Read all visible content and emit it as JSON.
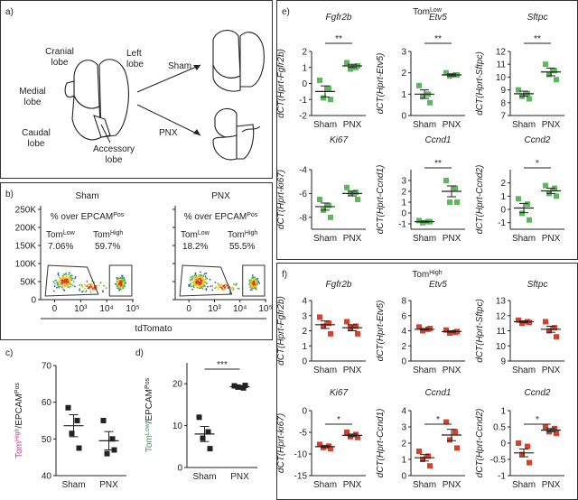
{
  "panel_a": {
    "label": "a)",
    "lobes": [
      [
        "Cranial",
        "lobe"
      ],
      [
        "Left",
        "lobe"
      ],
      [
        "Medial",
        "lobe"
      ],
      [
        "Caudal",
        "lobe"
      ],
      [
        "Accessory",
        "lobe"
      ]
    ],
    "arrows": [
      "Sham",
      "PNX"
    ]
  },
  "panel_b": {
    "label": "b)",
    "xlabel": "tdTomato",
    "ylim": [
      0,
      250000
    ],
    "yticks": [
      {
        "value": 250000,
        "label": "250K"
      },
      {
        "value": 200000,
        "label": "200K"
      },
      {
        "value": 150000,
        "label": "150K"
      },
      {
        "value": 100000,
        "label": "100K"
      },
      {
        "value": 50000,
        "label": "50K"
      },
      0
    ],
    "xticks": [
      0,
      {
        "value": 1000,
        "label": "10³"
      },
      {
        "value": 10000,
        "label": "10⁴"
      },
      {
        "value": 100000,
        "label": "10⁵"
      }
    ],
    "colors": {
      "low": "#2e9a5a",
      "high": "#d6338f"
    },
    "plots": [
      {
        "title": "Sham",
        "heading": [
          {
            "text": "% over EPCAM"
          },
          {
            "text": "Pos",
            "sup": true
          }
        ],
        "low": [
          {
            "text": "Tom"
          },
          {
            "text": "Low",
            "sup": true
          }
        ],
        "low_value": "7.06%",
        "high": [
          {
            "text": "Tom"
          },
          {
            "text": "High",
            "sup": true
          }
        ],
        "high_value": "59.7%"
      },
      {
        "title": "PNX",
        "heading": [
          {
            "text": "% over EPCAM"
          },
          {
            "text": "Pos",
            "sup": true
          }
        ],
        "low": [
          {
            "text": "Tom"
          },
          {
            "text": "Low",
            "sup": true
          }
        ],
        "low_value": "18.2%",
        "high": [
          {
            "text": "Tom"
          },
          {
            "text": "High",
            "sup": true
          }
        ],
        "high_value": "55.5%"
      }
    ]
  },
  "panel_e": {
    "label": "e)",
    "title": [
      {
        "text": "Tom"
      },
      {
        "text": "Low",
        "sup": true
      }
    ],
    "color": "#3aa64a"
  },
  "panel_f": {
    "label": "f)",
    "title": [
      {
        "text": "Tom"
      },
      {
        "text": "High",
        "sup": true
      }
    ],
    "color": "#d6338f"
  },
  "chart_data": [
    {
      "type": "dot",
      "label": "c)",
      "ylabel": [
        {
          "text": "Tom",
          "color": "#d6338f"
        },
        {
          "text": "High",
          "sup": true,
          "color": "#d6338f"
        },
        {
          "text": "/EPCAM"
        },
        {
          "text": "Pos",
          "sup": true
        }
      ],
      "categories": [
        "Sham",
        "PNX"
      ],
      "marker": "square",
      "color": "#222222",
      "groups": [
        {
          "values": [
            58.5,
            55,
            51.5,
            47.5
          ],
          "mean": 53.6,
          "sem": 3.0
        },
        {
          "values": [
            55,
            50,
            46,
            47
          ],
          "mean": 49.5,
          "sem": 2.5
        }
      ],
      "ylim": [
        40,
        70
      ],
      "yticks": [
        40,
        50,
        60,
        70
      ]
    },
    {
      "type": "dot",
      "label": "d)",
      "ylabel": [
        {
          "text": "Tom",
          "color": "#2e9a5a"
        },
        {
          "text": "Low",
          "sup": true,
          "color": "#2e9a5a"
        },
        {
          "text": "/EPCAM"
        },
        {
          "text": "Pos",
          "sup": true
        }
      ],
      "categories": [
        "Sham",
        "PNX"
      ],
      "marker": "square",
      "color": "#222222",
      "significance": "***",
      "groups": [
        {
          "values": [
            12,
            8.5,
            7,
            4.5
          ],
          "mean": 8,
          "sem": 1.8
        },
        {
          "values": [
            19.5,
            19,
            19.2,
            19.6
          ],
          "mean": 19.3,
          "sem": 0.3
        }
      ],
      "ylim": [
        0,
        25
      ],
      "yticks": [
        0,
        10,
        20
      ]
    },
    {
      "type": "dot",
      "title": "Fgfr2b",
      "ylabel": "dCT(Hprt-Fgfr2b)",
      "categories": [
        "Sham",
        "PNX"
      ],
      "marker": "square",
      "color": "#5cb85c",
      "significance": "**",
      "groups": [
        {
          "values": [
            0.2,
            -0.3,
            -0.9,
            -1.0
          ],
          "mean": -0.5,
          "sem": 0.35
        },
        {
          "values": [
            1.3,
            1.0,
            0.9,
            1.1
          ],
          "mean": 1.1,
          "sem": 0.1
        }
      ],
      "ylim": [
        -2,
        2
      ],
      "yticks": [
        -2,
        -1,
        0,
        1,
        2
      ]
    },
    {
      "type": "dot",
      "title": "Etv5",
      "ylabel": "dCT(Hprt-Etv5)",
      "categories": [
        "Sham",
        "PNX"
      ],
      "marker": "square",
      "color": "#5cb85c",
      "significance": "**",
      "groups": [
        {
          "values": [
            1.4,
            1.0,
            0.9,
            0.6
          ],
          "mean": 1.0,
          "sem": 0.2
        },
        {
          "values": [
            2.0,
            1.9,
            1.85,
            1.9
          ],
          "mean": 1.9,
          "sem": 0.05
        }
      ],
      "ylim": [
        0,
        3
      ],
      "yticks": [
        0,
        1,
        2,
        3
      ]
    },
    {
      "type": "dot",
      "title": "Sftpc",
      "ylabel": "dCT(Hprt-Sftpc)",
      "categories": [
        "Sham",
        "PNX"
      ],
      "marker": "square",
      "color": "#5cb85c",
      "significance": "**",
      "groups": [
        {
          "values": [
            9.0,
            8.7,
            8.5,
            8.3
          ],
          "mean": 8.7,
          "sem": 0.2
        },
        {
          "values": [
            11.0,
            10.5,
            10.2,
            9.8
          ],
          "mean": 10.4,
          "sem": 0.3
        }
      ],
      "ylim": [
        7,
        12
      ],
      "yticks": [
        7,
        8,
        9,
        10,
        11,
        12
      ]
    },
    {
      "type": "dot",
      "title": "Ki67",
      "ylabel": "dCT(Hprt-ki67)",
      "categories": [
        "Sham",
        "PNX"
      ],
      "marker": "square",
      "color": "#5cb85c",
      "groups": [
        {
          "values": [
            -6.5,
            -7.0,
            -7.4,
            -8.0
          ],
          "mean": -7.1,
          "sem": 0.3
        },
        {
          "values": [
            -5.5,
            -5.9,
            -6.0,
            -6.5
          ],
          "mean": -6.0,
          "sem": 0.2
        }
      ],
      "ylim": [
        -9,
        -4
      ],
      "yticks": [
        -8,
        -6,
        -4
      ]
    },
    {
      "type": "dot",
      "title": "Ccnd1",
      "ylabel": "dCT(Hprt-Ccnd1)",
      "categories": [
        "Sham",
        "PNX"
      ],
      "marker": "square",
      "color": "#5cb85c",
      "significance": "**",
      "groups": [
        {
          "values": [
            -0.7,
            -0.8,
            -0.9,
            -0.8
          ],
          "mean": -0.8,
          "sem": 0.05
        },
        {
          "values": [
            3.0,
            2.3,
            1.0,
            1.0
          ],
          "mean": 2.0,
          "sem": 0.5
        }
      ],
      "ylim": [
        -1.5,
        4
      ],
      "yticks": [
        -1,
        0,
        1,
        2,
        3
      ]
    },
    {
      "type": "dot",
      "title": "Ccnd2",
      "ylabel": "dCT(Hprt-Ccnd2)",
      "categories": [
        "Sham",
        "PNX"
      ],
      "marker": "square",
      "color": "#5cb85c",
      "significance": "*",
      "groups": [
        {
          "values": [
            0.8,
            0.4,
            -0.3,
            -0.8
          ],
          "mean": 0.1,
          "sem": 0.35
        },
        {
          "values": [
            1.8,
            1.6,
            1.2,
            1.0
          ],
          "mean": 1.4,
          "sem": 0.2
        }
      ],
      "ylim": [
        -1.5,
        3
      ],
      "yticks": [
        -1,
        0,
        1,
        2
      ]
    },
    {
      "type": "dot",
      "title": "Fgfr2b",
      "ylabel": "dCT(Hprt-Fgfr2b)",
      "categories": [
        "Sham",
        "PNX"
      ],
      "marker": "square",
      "color": "#d9402b",
      "groups": [
        {
          "values": [
            2.9,
            2.5,
            2.3,
            1.8
          ],
          "mean": 2.4,
          "sem": 0.25
        },
        {
          "values": [
            2.6,
            2.3,
            2.2,
            1.8
          ],
          "mean": 2.2,
          "sem": 0.2
        }
      ],
      "ylim": [
        0,
        4
      ],
      "yticks": [
        0,
        1,
        2,
        3,
        4
      ]
    },
    {
      "type": "dot",
      "title": "Etv5",
      "ylabel": "dCT(Hprt-Etv5)",
      "categories": [
        "Sham",
        "PNX"
      ],
      "marker": "square",
      "color": "#d9402b",
      "groups": [
        {
          "values": [
            4.5,
            4.2,
            4.0,
            4.3
          ],
          "mean": 4.2,
          "sem": 0.1
        },
        {
          "values": [
            4.1,
            3.8,
            3.7,
            3.9
          ],
          "mean": 3.9,
          "sem": 0.1
        }
      ],
      "ylim": [
        0,
        8
      ],
      "yticks": [
        0,
        2,
        4,
        6,
        8
      ]
    },
    {
      "type": "dot",
      "title": "Sftpc",
      "ylabel": "dCT(Hprt-Sftpc)",
      "categories": [
        "Sham",
        "PNX"
      ],
      "marker": "square",
      "color": "#d9402b",
      "groups": [
        {
          "values": [
            11.7,
            11.6,
            11.5,
            11.55
          ],
          "mean": 11.6,
          "sem": 0.05
        },
        {
          "values": [
            11.6,
            11.2,
            11.0,
            10.6
          ],
          "mean": 11.1,
          "sem": 0.2
        }
      ],
      "ylim": [
        9,
        13
      ],
      "yticks": [
        9,
        10,
        11,
        12,
        13
      ]
    },
    {
      "type": "dot",
      "title": "Ki67",
      "ylabel": "dCT(Hprt-ki67)",
      "categories": [
        "Sham",
        "PNX"
      ],
      "marker": "square",
      "color": "#d9402b",
      "significance": "*",
      "groups": [
        {
          "values": [
            -7.8,
            -8.2,
            -8.5,
            -8.8
          ],
          "mean": -8.3,
          "sem": 0.2
        },
        {
          "values": [
            -5.0,
            -5.5,
            -6.0,
            -6.2
          ],
          "mean": -5.7,
          "sem": 0.3
        }
      ],
      "ylim": [
        -15,
        0
      ],
      "yticks": [
        -15,
        -10,
        -5,
        0
      ]
    },
    {
      "type": "dot",
      "title": "Ccnd1",
      "ylabel": "dCT(Hprt-Ccnd1)",
      "categories": [
        "Sham",
        "PNX"
      ],
      "marker": "square",
      "color": "#d9402b",
      "significance": "*",
      "groups": [
        {
          "values": [
            1.5,
            1.2,
            1.0,
            0.6
          ],
          "mean": 1.1,
          "sem": 0.2
        },
        {
          "values": [
            3.3,
            2.7,
            2.2,
            1.7
          ],
          "mean": 2.5,
          "sem": 0.35
        }
      ],
      "ylim": [
        0,
        4
      ],
      "yticks": [
        0,
        1,
        2,
        3,
        4
      ]
    },
    {
      "type": "dot",
      "title": "Ccnd2",
      "ylabel": "dCT(Hprt-Ccnd2)",
      "categories": [
        "Sham",
        "PNX"
      ],
      "marker": "square",
      "color": "#d9402b",
      "significance": "*",
      "groups": [
        {
          "values": [
            0.0,
            -0.1,
            -0.35,
            -0.6
          ],
          "mean": -0.3,
          "sem": 0.12
        },
        {
          "values": [
            0.5,
            0.45,
            0.35,
            0.3
          ],
          "mean": 0.4,
          "sem": 0.05
        }
      ],
      "ylim": [
        -1,
        1
      ],
      "yticks": [
        -1,
        -0.5,
        0,
        0.5,
        1
      ]
    }
  ]
}
